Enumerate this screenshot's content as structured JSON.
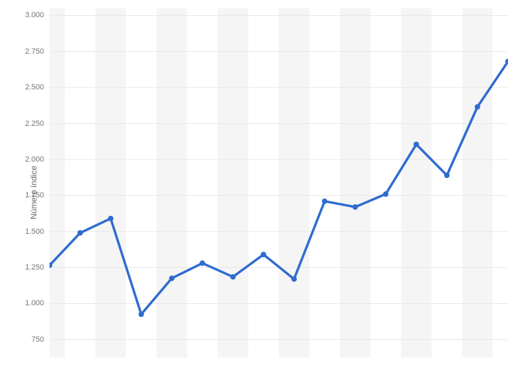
{
  "chart": {
    "type": "line",
    "ylabel": "Número índice",
    "ylabel_fontsize": 12,
    "tick_fontsize": 11,
    "ylim": [
      625,
      3050
    ],
    "yticks": [
      750,
      1000,
      1250,
      1500,
      1750,
      2000,
      2250,
      2500,
      2750,
      3000
    ],
    "ytick_labels": [
      "750",
      "1.000",
      "1.250",
      "1.500",
      "1.750",
      "2.000",
      "2.250",
      "2.500",
      "2.750",
      "3.000"
    ],
    "x_count": 15,
    "values": [
      1265,
      1490,
      1590,
      925,
      1175,
      1280,
      1185,
      1340,
      1170,
      1710,
      1670,
      1760,
      2105,
      1890,
      2365,
      2680
    ],
    "line_color": "#2f6cd0",
    "line_width": 3.5,
    "marker_radius": 4,
    "marker_color": "#2f6cd0",
    "background_color": "#ffffff",
    "band_color": "#f5f5f5",
    "grid_color": "#e8e8e8"
  }
}
